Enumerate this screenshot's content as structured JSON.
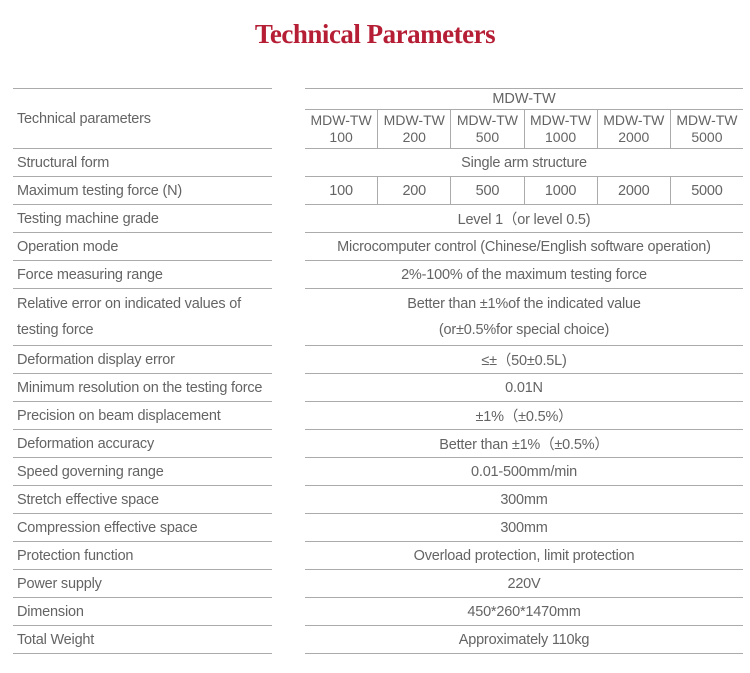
{
  "title": "Technical Parameters",
  "colors": {
    "title_red": "#b51e35",
    "text_gray": "#646464",
    "rule_gray": "#ababab"
  },
  "table": {
    "left_header": "Technical parameters",
    "group_header": "MDW-TW",
    "model_prefix": "MDW-TW",
    "models": [
      "100",
      "200",
      "500",
      "1000",
      "2000",
      "5000"
    ],
    "rows": [
      {
        "label": "Structural form",
        "value": "Single arm structure"
      },
      {
        "label": "Maximum testing force (N)",
        "values": [
          "100",
          "200",
          "500",
          "1000",
          "2000",
          "5000"
        ]
      },
      {
        "label": "Testing machine grade",
        "value": "Level 1（or level 0.5)"
      },
      {
        "label": "Operation mode",
        "value": "Microcomputer control (Chinese/English software operation)"
      },
      {
        "label": "Force measuring range",
        "value": "2%-100% of the maximum testing force"
      },
      {
        "label_lines": [
          "Relative error on indicated values of",
          "testing force"
        ],
        "value_lines": [
          "Better than ±1%of the indicated value",
          "(or±0.5%for special choice)"
        ]
      },
      {
        "label": "Deformation display error",
        "value": "≤±（50±0.5L)"
      },
      {
        "label": "Minimum resolution on the testing force",
        "value": "0.01N"
      },
      {
        "label": "Precision on beam displacement",
        "value": "±1%（±0.5%）"
      },
      {
        "label": "Deformation accuracy",
        "value": "Better than ±1%（±0.5%）"
      },
      {
        "label": "Speed governing range",
        "value": "0.01-500mm/min"
      },
      {
        "label": "Stretch effective space",
        "value": "300mm"
      },
      {
        "label": "Compression effective space",
        "value": "300mm"
      },
      {
        "label": "Protection function",
        "value": "Overload protection, limit protection"
      },
      {
        "label": "Power supply",
        "value": "220V"
      },
      {
        "label": "Dimension",
        "value": "450*260*1470mm"
      },
      {
        "label": "Total Weight",
        "value": "Approximately 110kg"
      }
    ]
  }
}
